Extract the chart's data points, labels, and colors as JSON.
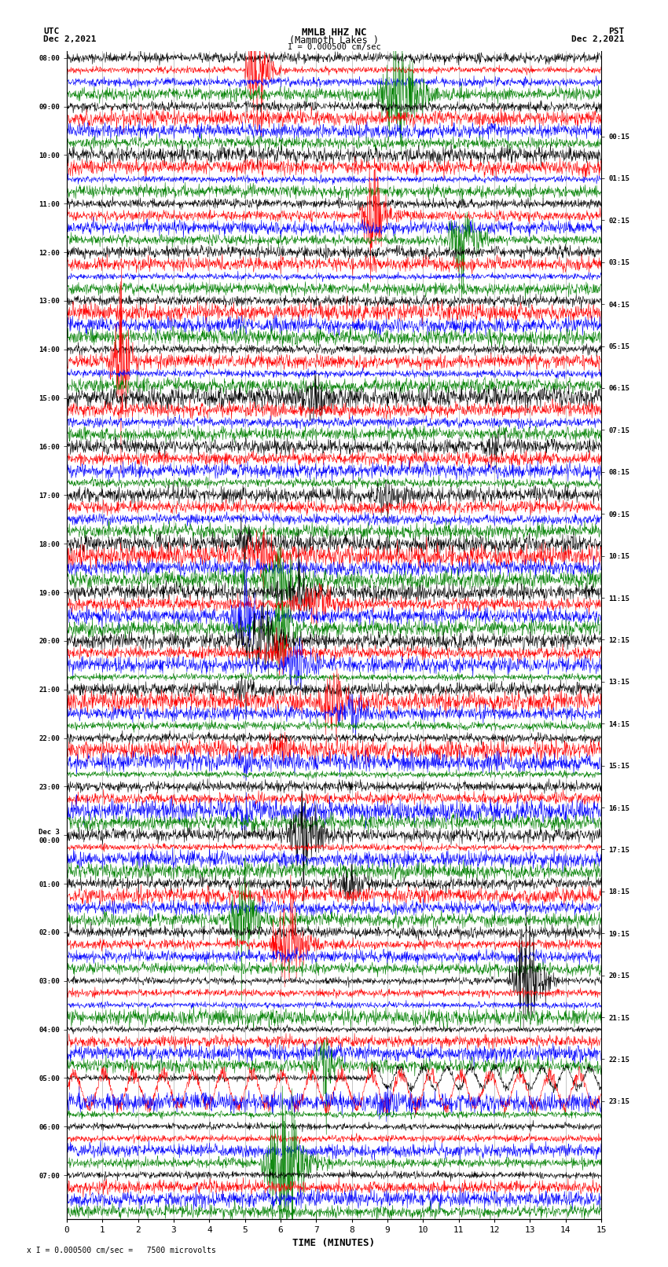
{
  "title_line1": "MMLB HHZ NC",
  "title_line2": "(Mammoth Lakes )",
  "scale_label": "I = 0.000500 cm/sec",
  "left_header_line1": "UTC",
  "left_header_line2": "Dec 2,2021",
  "right_header_line1": "PST",
  "right_header_line2": "Dec 2,2021",
  "xlabel": "TIME (MINUTES)",
  "footer": "x I = 0.000500 cm/sec =   7500 microvolts",
  "utc_labels": [
    "08:00",
    "",
    "",
    "",
    "09:00",
    "",
    "",
    "",
    "10:00",
    "",
    "",
    "",
    "11:00",
    "",
    "",
    "",
    "12:00",
    "",
    "",
    "",
    "13:00",
    "",
    "",
    "",
    "14:00",
    "",
    "",
    "",
    "15:00",
    "",
    "",
    "",
    "16:00",
    "",
    "",
    "",
    "17:00",
    "",
    "",
    "",
    "18:00",
    "",
    "",
    "",
    "19:00",
    "",
    "",
    "",
    "20:00",
    "",
    "",
    "",
    "21:00",
    "",
    "",
    "",
    "22:00",
    "",
    "",
    "",
    "23:00",
    "",
    "",
    "",
    "Dec 3\n00:00",
    "",
    "",
    "",
    "01:00",
    "",
    "",
    "",
    "02:00",
    "",
    "",
    "",
    "03:00",
    "",
    "",
    "",
    "04:00",
    "",
    "",
    "",
    "05:00",
    "",
    "",
    "",
    "06:00",
    "",
    "",
    "",
    "07:00",
    "",
    "",
    ""
  ],
  "pst_labels": [
    "00:15",
    "",
    "",
    "",
    "01:15",
    "",
    "",
    "",
    "02:15",
    "",
    "",
    "",
    "03:15",
    "",
    "",
    "",
    "04:15",
    "",
    "",
    "",
    "05:15",
    "",
    "",
    "",
    "06:15",
    "",
    "",
    "",
    "07:15",
    "",
    "",
    "",
    "08:15",
    "",
    "",
    "",
    "09:15",
    "",
    "",
    "",
    "10:15",
    "",
    "",
    "",
    "11:15",
    "",
    "",
    "",
    "12:15",
    "",
    "",
    "",
    "13:15",
    "",
    "",
    "",
    "14:15",
    "",
    "",
    "",
    "15:15",
    "",
    "",
    "",
    "16:15",
    "",
    "",
    "",
    "17:15",
    "",
    "",
    "",
    "18:15",
    "",
    "",
    "",
    "19:15",
    "",
    "",
    "",
    "20:15",
    "",
    "",
    "",
    "21:15",
    "",
    "",
    "",
    "22:15",
    "",
    "",
    "",
    "23:15",
    "",
    "",
    ""
  ],
  "n_rows": 96,
  "n_cols": 15,
  "colors": [
    "black",
    "red",
    "blue",
    "green"
  ],
  "bg_color": "white",
  "grid_color": "#999999",
  "trace_amplitude": 0.28
}
